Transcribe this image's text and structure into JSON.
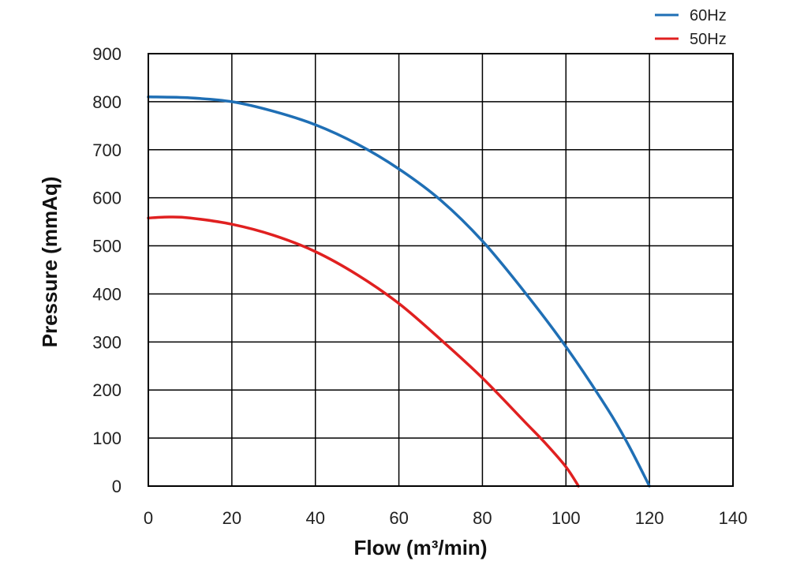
{
  "chart_data": {
    "type": "line",
    "title": "",
    "xlabel": "Flow (m³/min)",
    "ylabel": "Pressure (mmAq)",
    "xlim": [
      0,
      140
    ],
    "ylim": [
      0,
      900
    ],
    "x_ticks": [
      "0",
      "20",
      "40",
      "60",
      "80",
      "100",
      "120",
      "140"
    ],
    "y_ticks": [
      "0",
      "100",
      "200",
      "300",
      "400",
      "500",
      "600",
      "700",
      "800",
      "900"
    ],
    "grid": true,
    "legend_position": "top-right",
    "series": [
      {
        "name": "60Hz",
        "color": "#1f6fb5",
        "x": [
          0,
          10,
          20,
          30,
          40,
          50,
          60,
          70,
          80,
          90,
          100,
          110,
          115,
          120
        ],
        "y": [
          810,
          808,
          800,
          780,
          752,
          712,
          660,
          595,
          510,
          405,
          290,
          160,
          85,
          0
        ]
      },
      {
        "name": "50Hz",
        "color": "#e02020",
        "x": [
          0,
          5,
          10,
          20,
          30,
          40,
          50,
          60,
          70,
          80,
          90,
          95,
          100,
          103
        ],
        "y": [
          558,
          560,
          558,
          545,
          522,
          488,
          440,
          380,
          305,
          225,
          135,
          90,
          40,
          0
        ]
      }
    ]
  }
}
